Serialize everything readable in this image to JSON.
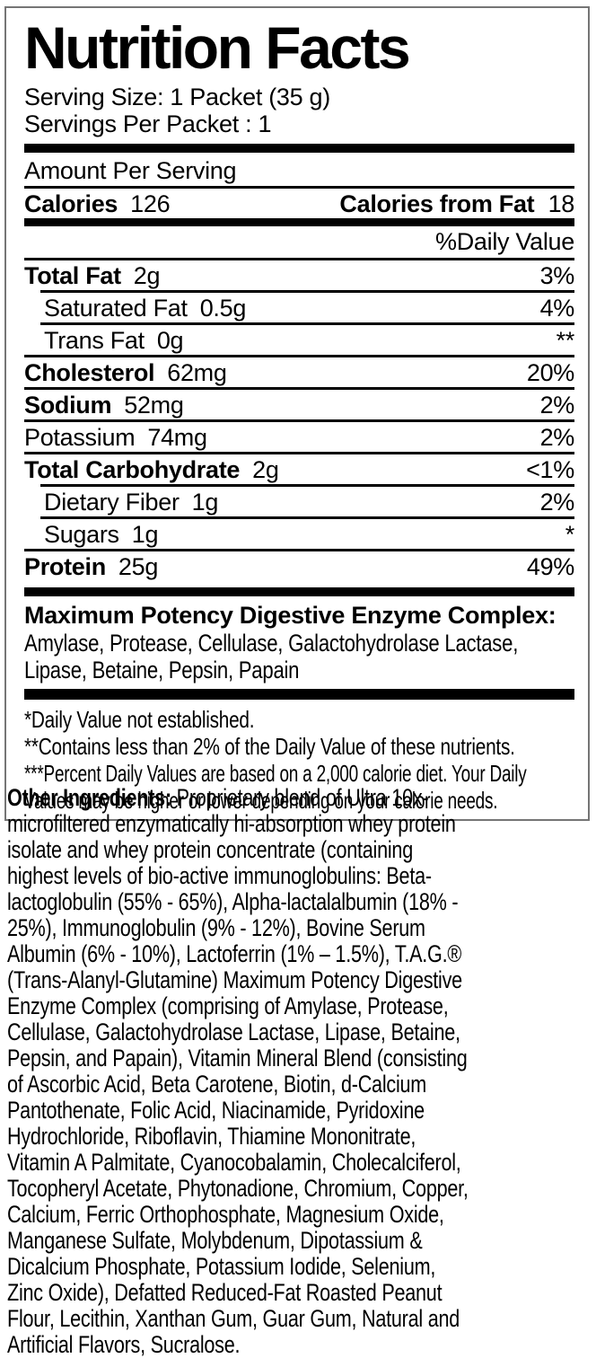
{
  "colors": {
    "text": "#000000",
    "bar": "#000000",
    "panel_border": "#757575",
    "background": "#ffffff"
  },
  "label": {
    "title": "Nutrition Facts",
    "serving_size": "Serving Size: 1 Packet (35 g)",
    "servings_per": "Servings Per Packet : 1",
    "amount_per_serving": "Amount Per Serving",
    "calories_label": "Calories",
    "calories_value": "126",
    "calories_from_fat_label": "Calories from Fat",
    "calories_from_fat_value": "18",
    "daily_value_header": "%Daily Value",
    "rows": [
      {
        "name": "Total Fat",
        "amount": "2g",
        "dv": "3%"
      },
      {
        "name": "Saturated Fat",
        "amount": "0.5g",
        "dv": "4%"
      },
      {
        "name": "Trans Fat",
        "amount": "0g",
        "dv": "**"
      },
      {
        "name": "Cholesterol",
        "amount": "62mg",
        "dv": "20%"
      },
      {
        "name": "Sodium",
        "amount": "52mg",
        "dv": "2%"
      },
      {
        "name": "Potassium",
        "amount": "74mg",
        "dv": "2%"
      },
      {
        "name": "Total Carbohydrate",
        "amount": "2g",
        "dv": "<1%"
      },
      {
        "name": "Dietary Fiber",
        "amount": "1g",
        "dv": "2%"
      },
      {
        "name": "Sugars",
        "amount": "1g",
        "dv": "*"
      },
      {
        "name": "Protein",
        "amount": "25g",
        "dv": "49%"
      }
    ],
    "enzyme_heading": "Maximum Potency Digestive Enzyme Complex:",
    "enzyme_text": "Amylase, Protease, Cellulase, Galactohydrolase Lactase, Lipase, Betaine, Pepsin, Papain",
    "footnotes": [
      "*Daily Value not established.",
      "**Contains less than 2% of the Daily Value of these nutrients.",
      "***Percent Daily Values are based on a 2,000 calorie diet. Your Daily Values may be higher or lower depending on your calorie needs."
    ]
  },
  "other_ingredients": {
    "heading": "Other Ingredients:",
    "text": " Proprietary blend of Ultra 10x-microfiltered enzymatically hi-absorption whey protein isolate and whey protein concentrate (containing highest levels of bio-active immunoglobulins: Beta-lactoglobulin (55% - 65%), Alpha-lactalalbumin (18% - 25%), Immunoglobulin (9% - 12%), Bovine Serum Albumin (6% - 10%), Lactoferrin (1% – 1.5%), T.A.G.® (Trans-Alanyl-Glutamine) Maximum Potency Digestive Enzyme Complex (comprising of Amylase, Protease, Cellulase, Galactohydrolase Lactase, Lipase, Betaine, Pepsin, and Papain), Vitamin Mineral Blend (consisting of Ascorbic Acid, Beta Carotene, Biotin, d-Calcium Pantothenate, Folic Acid, Niacinamide, Pyridoxine Hydrochloride, Riboflavin, Thiamine Mononitrate, Vitamin A Palmitate, Cyanocobalamin, Cholecalciferol, Tocopheryl Acetate, Phytonadione, Chromium, Copper, Calcium, Ferric Orthophosphate, Magnesium Oxide, Manganese Sulfate, Molybdenum, Dipotassium & Dicalcium Phosphate, Potassium Iodide, Selenium, Zinc Oxide), Defatted Reduced-Fat Roasted Peanut Flour, Lecithin, Xanthan Gum, Guar Gum, Natural and Artificial Flavors, Sucralose."
  }
}
